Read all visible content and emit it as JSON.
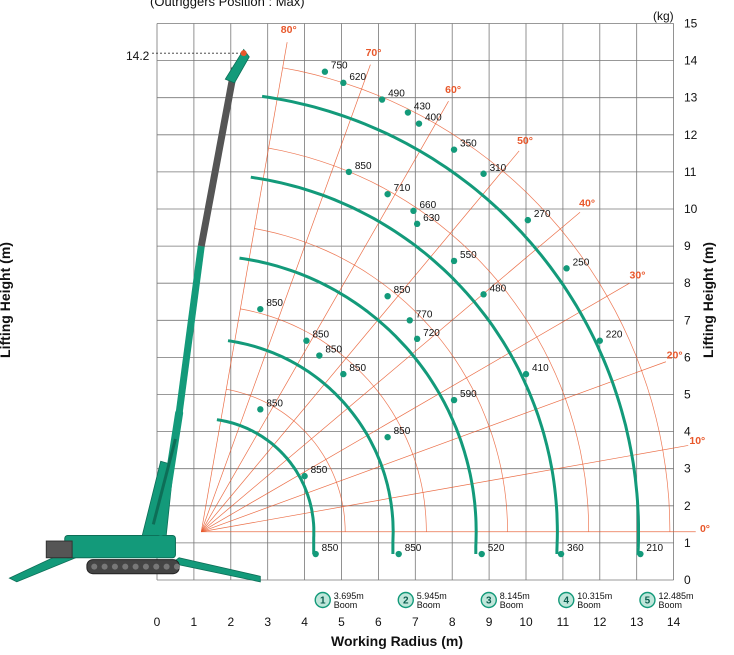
{
  "header_note": "(Outriggers Position : Max)",
  "chart_data": {
    "type": "scatter",
    "xlabel": "Working Radius (m)",
    "ylabel": "Lifting Height (m)",
    "y_unit": "(kg)",
    "xlim": [
      0,
      14
    ],
    "ylim": [
      0,
      15
    ],
    "x_ticks": [
      "0",
      "1",
      "2",
      "3",
      "4",
      "5",
      "6",
      "7",
      "8",
      "9",
      "10",
      "11",
      "12",
      "13",
      "14"
    ],
    "y_ticks": [
      "0",
      "1",
      "2",
      "3",
      "4",
      "5",
      "6",
      "7",
      "8",
      "9",
      "10",
      "11",
      "12",
      "13",
      "14",
      "15"
    ],
    "max_height_label": "14.2",
    "angle_lines": [
      {
        "label": "80°",
        "deg": 80
      },
      {
        "label": "70°",
        "deg": 70
      },
      {
        "label": "60°",
        "deg": 60
      },
      {
        "label": "50°",
        "deg": 50
      },
      {
        "label": "40°",
        "deg": 40
      },
      {
        "label": "30°",
        "deg": 30
      },
      {
        "label": "20°",
        "deg": 20
      },
      {
        "label": "10°",
        "deg": 10
      },
      {
        "label": "0°",
        "deg": 0
      }
    ],
    "series": [
      {
        "name": "3.695m Boom",
        "badge": "1",
        "boom_line1": "3.695m",
        "boom_line2": "Boom",
        "badge_x": 4.6,
        "points": [
          {
            "x": 2.8,
            "y": 7.3,
            "load": "850"
          },
          {
            "x": 2.8,
            "y": 4.6,
            "load": "850"
          },
          {
            "x": 4.0,
            "y": 2.8,
            "load": "850"
          },
          {
            "x": 4.3,
            "y": 0.7,
            "load": "850"
          }
        ]
      },
      {
        "name": "5.945m Boom",
        "badge": "2",
        "boom_line1": "5.945m",
        "boom_line2": "Boom",
        "badge_x": 6.85,
        "points": [
          {
            "x": 4.05,
            "y": 6.45,
            "load": "850"
          },
          {
            "x": 4.4,
            "y": 6.05,
            "load": "850"
          },
          {
            "x": 5.05,
            "y": 5.55,
            "load": "850"
          },
          {
            "x": 6.25,
            "y": 3.85,
            "load": "850"
          },
          {
            "x": 6.55,
            "y": 0.7,
            "load": "850"
          }
        ]
      },
      {
        "name": "8.145m Boom",
        "badge": "3",
        "boom_line1": "8.145m",
        "boom_line2": "Boom",
        "badge_x": 9.1,
        "points": [
          {
            "x": 5.2,
            "y": 11.0,
            "load": "850"
          },
          {
            "x": 6.25,
            "y": 10.4,
            "load": "710"
          },
          {
            "x": 6.95,
            "y": 9.95,
            "load": "660"
          },
          {
            "x": 7.05,
            "y": 9.6,
            "load": "630"
          },
          {
            "x": 6.25,
            "y": 7.65,
            "load": "850"
          },
          {
            "x": 6.85,
            "y": 7.0,
            "load": "770"
          },
          {
            "x": 7.05,
            "y": 6.5,
            "load": "720"
          },
          {
            "x": 8.05,
            "y": 4.85,
            "load": "590"
          },
          {
            "x": 8.8,
            "y": 0.7,
            "load": "520"
          }
        ]
      },
      {
        "name": "10.315m Boom",
        "badge": "4",
        "boom_line1": "10.315m",
        "boom_line2": "Boom",
        "badge_x": 11.2,
        "points": [
          {
            "x": 4.55,
            "y": 13.7,
            "load": "750"
          },
          {
            "x": 5.05,
            "y": 13.4,
            "load": "620"
          },
          {
            "x": 6.1,
            "y": 12.95,
            "load": "490"
          },
          {
            "x": 6.8,
            "y": 12.6,
            "load": "430"
          },
          {
            "x": 7.1,
            "y": 12.3,
            "load": "400"
          },
          {
            "x": 8.05,
            "y": 11.6,
            "load": "350"
          },
          {
            "x": 8.85,
            "y": 10.95,
            "load": "310"
          },
          {
            "x": 8.05,
            "y": 8.6,
            "load": "550"
          },
          {
            "x": 8.85,
            "y": 7.7,
            "load": "480"
          },
          {
            "x": 10.0,
            "y": 5.55,
            "load": "410"
          },
          {
            "x": 10.95,
            "y": 0.7,
            "load": "360"
          }
        ]
      },
      {
        "name": "12.485m Boom",
        "badge": "5",
        "boom_line1": "12.485m",
        "boom_line2": "Boom",
        "badge_x": 13.4,
        "points": [
          {
            "x": 10.05,
            "y": 9.7,
            "load": "270"
          },
          {
            "x": 11.1,
            "y": 8.4,
            "load": "250"
          },
          {
            "x": 12.0,
            "y": 6.45,
            "load": "220"
          },
          {
            "x": 13.1,
            "y": 0.7,
            "load": "210"
          }
        ]
      }
    ]
  }
}
